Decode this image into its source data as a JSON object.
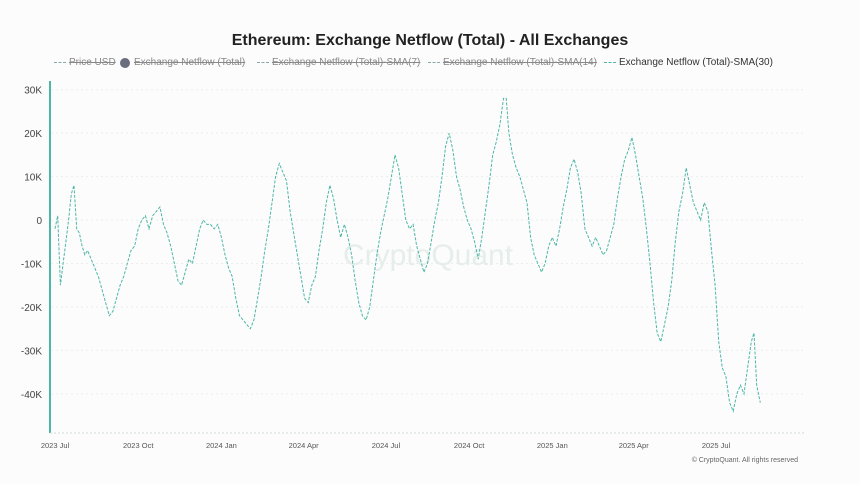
{
  "chart_data": {
    "type": "line",
    "title": "Ethereum: Exchange Netflow (Total) - All Exchanges",
    "legend": [
      {
        "label": "Price USD",
        "active": false,
        "marker": "line"
      },
      {
        "label": "Exchange Netflow (Total)",
        "active": false,
        "marker": "dot"
      },
      {
        "label": "Exchange Netflow (Total)-SMA(7)",
        "active": false,
        "marker": "line"
      },
      {
        "label": "Exchange Netflow (Total)-SMA(14)",
        "active": false,
        "marker": "line"
      },
      {
        "label": "Exchange Netflow (Total)-SMA(30)",
        "active": true,
        "marker": "line"
      }
    ],
    "y_ticks": [
      "30K",
      "20K",
      "10K",
      "0",
      "-10K",
      "-20K",
      "-30K",
      "-40K"
    ],
    "y_tick_values": [
      30000,
      20000,
      10000,
      0,
      -10000,
      -20000,
      -30000,
      -40000
    ],
    "ylim": [
      -49000,
      32000
    ],
    "x_ticks": [
      "2023 Jul",
      "2023 Oct",
      "2024 Jan",
      "2024 Apr",
      "2024 Jul",
      "2024 Oct",
      "2025 Jan",
      "2025 Apr",
      "2025 Jul"
    ],
    "x_tick_positions": [
      0,
      92,
      184,
      275,
      366,
      458,
      550,
      640,
      731
    ],
    "xlim": [
      0,
      825
    ],
    "series_name": "Exchange Netflow (Total)-SMA(30)",
    "series_color": "#4db6a6",
    "points": [
      [
        0,
        -2000
      ],
      [
        3,
        1000
      ],
      [
        6,
        -15000
      ],
      [
        9,
        -10000
      ],
      [
        12,
        -5000
      ],
      [
        15,
        0
      ],
      [
        18,
        6000
      ],
      [
        21,
        8000
      ],
      [
        24,
        -2000
      ],
      [
        27,
        -3000
      ],
      [
        30,
        -6000
      ],
      [
        33,
        -8000
      ],
      [
        36,
        -7000
      ],
      [
        40,
        -9000
      ],
      [
        44,
        -11000
      ],
      [
        48,
        -13000
      ],
      [
        52,
        -16000
      ],
      [
        56,
        -19000
      ],
      [
        60,
        -22000
      ],
      [
        64,
        -21000
      ],
      [
        68,
        -18000
      ],
      [
        72,
        -15000
      ],
      [
        76,
        -13000
      ],
      [
        80,
        -10000
      ],
      [
        84,
        -7000
      ],
      [
        88,
        -6000
      ],
      [
        92,
        -2000
      ],
      [
        96,
        0
      ],
      [
        100,
        1000
      ],
      [
        104,
        -2000
      ],
      [
        108,
        1000
      ],
      [
        112,
        2000
      ],
      [
        116,
        3000
      ],
      [
        120,
        -1000
      ],
      [
        124,
        -3000
      ],
      [
        128,
        -6000
      ],
      [
        132,
        -10000
      ],
      [
        136,
        -14000
      ],
      [
        140,
        -15000
      ],
      [
        144,
        -12000
      ],
      [
        148,
        -9000
      ],
      [
        152,
        -10000
      ],
      [
        156,
        -6000
      ],
      [
        160,
        -2000
      ],
      [
        164,
        0
      ],
      [
        168,
        -1000
      ],
      [
        172,
        -1000
      ],
      [
        176,
        -2000
      ],
      [
        180,
        -1000
      ],
      [
        184,
        -4000
      ],
      [
        188,
        -8000
      ],
      [
        192,
        -11000
      ],
      [
        196,
        -13000
      ],
      [
        200,
        -18000
      ],
      [
        204,
        -22000
      ],
      [
        208,
        -23000
      ],
      [
        212,
        -24000
      ],
      [
        216,
        -25000
      ],
      [
        220,
        -23000
      ],
      [
        224,
        -18000
      ],
      [
        228,
        -13000
      ],
      [
        232,
        -7000
      ],
      [
        236,
        -2000
      ],
      [
        240,
        4000
      ],
      [
        244,
        10000
      ],
      [
        248,
        13000
      ],
      [
        252,
        11000
      ],
      [
        256,
        9000
      ],
      [
        260,
        2000
      ],
      [
        264,
        -3000
      ],
      [
        268,
        -8000
      ],
      [
        272,
        -13000
      ],
      [
        276,
        -18000
      ],
      [
        280,
        -19000
      ],
      [
        284,
        -15000
      ],
      [
        288,
        -13000
      ],
      [
        292,
        -7000
      ],
      [
        296,
        -2000
      ],
      [
        300,
        4000
      ],
      [
        304,
        8000
      ],
      [
        308,
        5000
      ],
      [
        312,
        0
      ],
      [
        316,
        -4000
      ],
      [
        320,
        -1000
      ],
      [
        324,
        -4000
      ],
      [
        328,
        -8000
      ],
      [
        332,
        -14000
      ],
      [
        336,
        -19000
      ],
      [
        340,
        -22000
      ],
      [
        344,
        -23000
      ],
      [
        348,
        -20000
      ],
      [
        352,
        -14000
      ],
      [
        356,
        -8000
      ],
      [
        360,
        -3000
      ],
      [
        364,
        1000
      ],
      [
        368,
        5000
      ],
      [
        372,
        10000
      ],
      [
        376,
        15000
      ],
      [
        380,
        12000
      ],
      [
        384,
        6000
      ],
      [
        388,
        0
      ],
      [
        392,
        -2000
      ],
      [
        396,
        -1000
      ],
      [
        400,
        -6000
      ],
      [
        404,
        -9000
      ],
      [
        408,
        -12000
      ],
      [
        412,
        -10000
      ],
      [
        416,
        -5000
      ],
      [
        420,
        0
      ],
      [
        424,
        4000
      ],
      [
        428,
        10000
      ],
      [
        432,
        17000
      ],
      [
        436,
        20000
      ],
      [
        440,
        16000
      ],
      [
        444,
        10000
      ],
      [
        448,
        7000
      ],
      [
        452,
        3000
      ],
      [
        456,
        0
      ],
      [
        460,
        -2000
      ],
      [
        464,
        -5000
      ],
      [
        468,
        -9000
      ],
      [
        472,
        -4000
      ],
      [
        476,
        2000
      ],
      [
        480,
        8000
      ],
      [
        484,
        15000
      ],
      [
        488,
        18000
      ],
      [
        492,
        22000
      ],
      [
        496,
        28000
      ],
      [
        499,
        28000
      ],
      [
        502,
        20000
      ],
      [
        506,
        15000
      ],
      [
        510,
        12000
      ],
      [
        514,
        10000
      ],
      [
        518,
        7000
      ],
      [
        522,
        4000
      ],
      [
        526,
        -4000
      ],
      [
        530,
        -8000
      ],
      [
        534,
        -10000
      ],
      [
        538,
        -12000
      ],
      [
        542,
        -10000
      ],
      [
        546,
        -6000
      ],
      [
        550,
        -4000
      ],
      [
        554,
        -6000
      ],
      [
        558,
        -2000
      ],
      [
        562,
        3000
      ],
      [
        566,
        7000
      ],
      [
        570,
        12000
      ],
      [
        574,
        14000
      ],
      [
        578,
        11000
      ],
      [
        582,
        6000
      ],
      [
        586,
        -2000
      ],
      [
        590,
        -4000
      ],
      [
        594,
        -6000
      ],
      [
        598,
        -4000
      ],
      [
        602,
        -6000
      ],
      [
        606,
        -8000
      ],
      [
        610,
        -7000
      ],
      [
        614,
        -4000
      ],
      [
        618,
        -1000
      ],
      [
        622,
        5000
      ],
      [
        626,
        10000
      ],
      [
        630,
        14000
      ],
      [
        634,
        16000
      ],
      [
        638,
        19000
      ],
      [
        642,
        15000
      ],
      [
        646,
        10000
      ],
      [
        650,
        5000
      ],
      [
        654,
        -2000
      ],
      [
        658,
        -10000
      ],
      [
        662,
        -19000
      ],
      [
        666,
        -26000
      ],
      [
        670,
        -28000
      ],
      [
        674,
        -24000
      ],
      [
        678,
        -20000
      ],
      [
        682,
        -14000
      ],
      [
        686,
        -5000
      ],
      [
        690,
        2000
      ],
      [
        694,
        6000
      ],
      [
        698,
        12000
      ],
      [
        702,
        8000
      ],
      [
        706,
        4000
      ],
      [
        710,
        2000
      ],
      [
        714,
        0
      ],
      [
        718,
        4000
      ],
      [
        722,
        2000
      ],
      [
        726,
        -7000
      ],
      [
        730,
        -15000
      ],
      [
        734,
        -28000
      ],
      [
        738,
        -34000
      ],
      [
        742,
        -36000
      ],
      [
        746,
        -42000
      ],
      [
        750,
        -44000
      ],
      [
        754,
        -40000
      ],
      [
        758,
        -38000
      ],
      [
        762,
        -40000
      ],
      [
        766,
        -34000
      ],
      [
        770,
        -28000
      ],
      [
        773,
        -26000
      ],
      [
        776,
        -38000
      ],
      [
        780,
        -42000
      ]
    ]
  },
  "watermark": "CryptoQuant",
  "footer": "© CryptoQuant. All rights reserved"
}
